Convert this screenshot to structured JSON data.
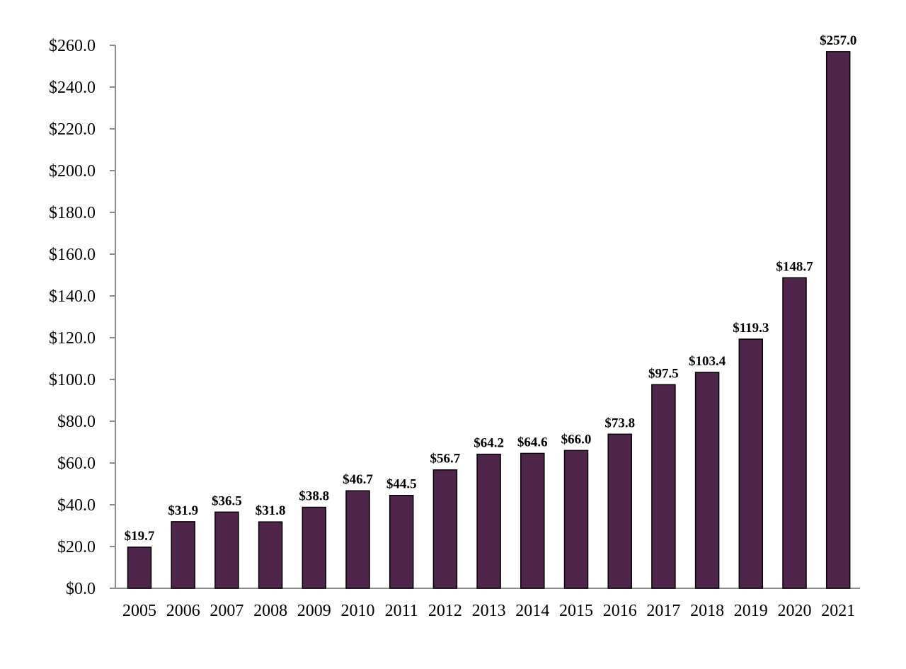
{
  "chart_data": {
    "type": "bar",
    "title": "",
    "xlabel": "",
    "ylabel": "",
    "categories": [
      "2005",
      "2006",
      "2007",
      "2008",
      "2009",
      "2010",
      "2011",
      "2012",
      "2013",
      "2014",
      "2015",
      "2016",
      "2017",
      "2018",
      "2019",
      "2020",
      "2021"
    ],
    "values": [
      19.7,
      31.9,
      36.5,
      31.8,
      38.8,
      46.7,
      44.5,
      56.7,
      64.2,
      64.6,
      66.0,
      73.8,
      97.5,
      103.4,
      119.3,
      148.7,
      257.0
    ],
    "data_labels": [
      "$19.7",
      "$31.9",
      "$36.5",
      "$31.8",
      "$38.8",
      "$46.7",
      "$44.5",
      "$56.7",
      "$64.2",
      "$64.6",
      "$66.0",
      "$73.8",
      "$97.5",
      "$103.4",
      "$119.3",
      "$148.7",
      "$257.0"
    ],
    "ylim": [
      0,
      260
    ],
    "yticks": [
      0,
      20,
      40,
      60,
      80,
      100,
      120,
      140,
      160,
      180,
      200,
      220,
      240,
      260
    ],
    "ytick_labels": [
      "$0.0",
      "$20.0",
      "$40.0",
      "$60.0",
      "$80.0",
      "$100.0",
      "$120.0",
      "$140.0",
      "$160.0",
      "$180.0",
      "$200.0",
      "$220.0",
      "$240.0",
      "$260.0"
    ],
    "grid": false,
    "legend": "none",
    "colors": {
      "bar_fill": "#4f254b",
      "bar_stroke": "#000000",
      "axis": "#8c8c8c"
    }
  }
}
